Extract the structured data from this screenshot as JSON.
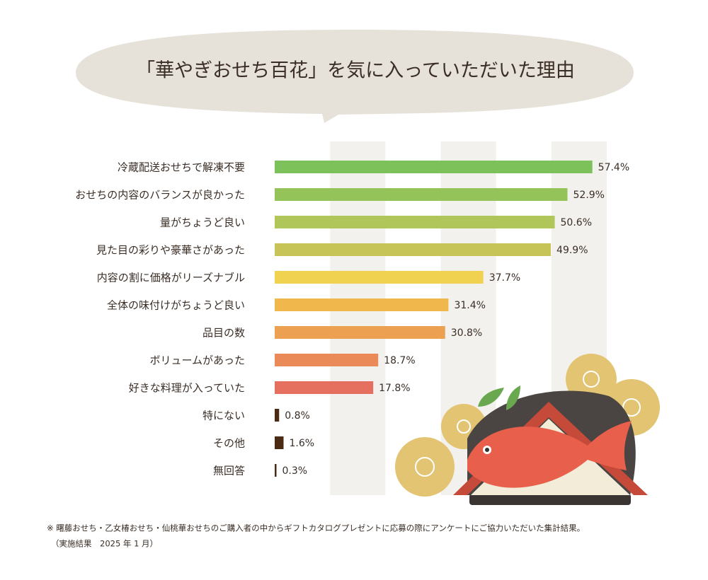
{
  "chart_data": {
    "type": "bar",
    "orientation": "horizontal",
    "title": "「華やぎおせち百花」を気に入っていただいた理由",
    "categories": [
      "冷蔵配送おせちで解凍不要",
      "おせちの内容のバランスが良かった",
      "量がちょうど良い",
      "見た目の彩りや豪華さがあった",
      "内容の割に価格がリーズナブル",
      "全体の味付けがちょうど良い",
      "品目の数",
      "ボリュームがあった",
      "好きな料理が入っていた",
      "特にない",
      "その他",
      "無回答"
    ],
    "values": [
      57.4,
      52.9,
      50.6,
      49.9,
      37.7,
      31.4,
      30.8,
      18.7,
      17.8,
      0.8,
      1.6,
      0.3
    ],
    "value_labels": [
      "57.4%",
      "52.9%",
      "50.6%",
      "49.9%",
      "37.7%",
      "31.4%",
      "30.8%",
      "18.7%",
      "17.8%",
      "0.8%",
      "1.6%",
      "0.3%"
    ],
    "colors": [
      "#7cc15a",
      "#94c35a",
      "#b1c65a",
      "#c6c457",
      "#f1d250",
      "#f0b84c",
      "#eca052",
      "#e98a58",
      "#e6705f",
      "#4a2a12",
      "#4a2a12",
      "#4a2a12"
    ],
    "xlim": [
      0,
      60
    ],
    "xticks": [
      0,
      10,
      20,
      30,
      40,
      50,
      60
    ],
    "notes": [
      "※ 曙藤おせち・乙女椿おせち・仙桃華おせちのご購入者の中からギフトカタログプレゼントに応募の際にアンケートにご協力いただいた集計結果。",
      "（実施結果　2025 年 1 月）"
    ]
  }
}
